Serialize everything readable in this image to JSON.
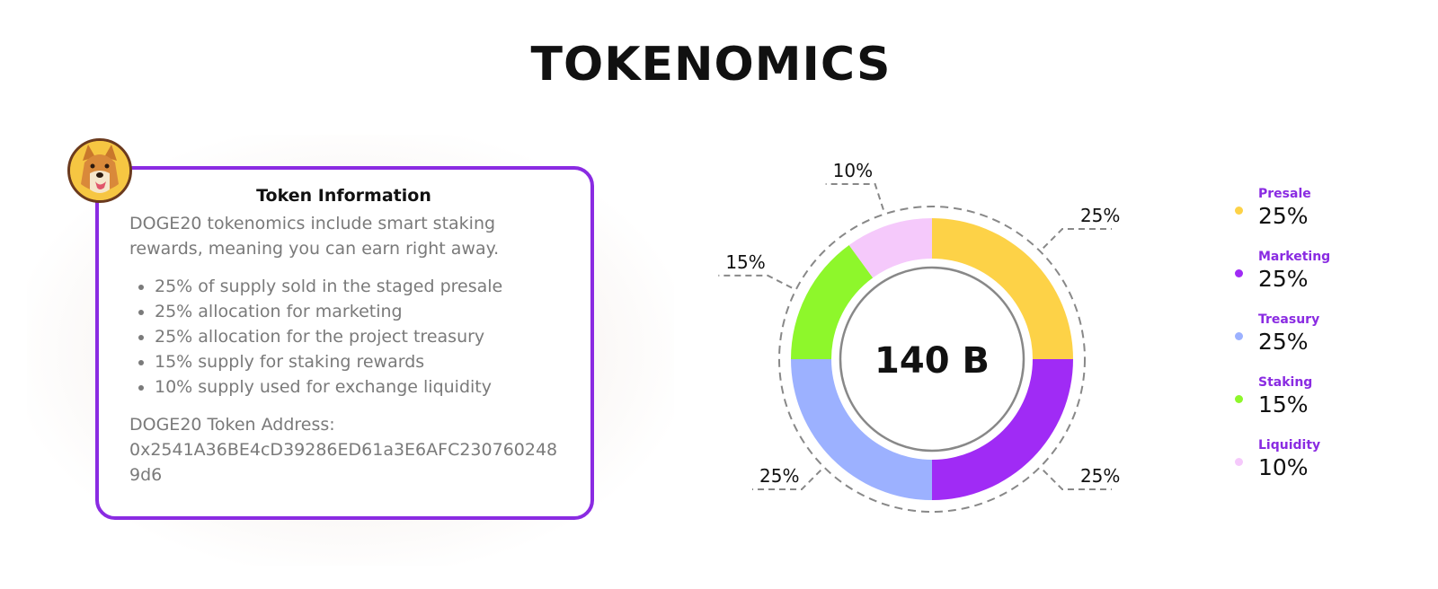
{
  "page": {
    "title": "TOKENOMICS"
  },
  "card": {
    "heading": "Token Information",
    "intro": "DOGE20 tokenomics include smart staking rewards, meaning you can earn right away.",
    "bullets": [
      "25% of supply sold in the staged presale",
      "25% allocation for marketing",
      "25% allocation for the project treasury",
      "15% supply for staking rewards",
      "10% supply used for exchange liquidity"
    ],
    "address_label": "DOGE20 Token Address:",
    "address_value": "0x2541A36BE4cD39286ED61a3E6AFC2307602489d6",
    "avatar_icon": "doge-avatar-icon"
  },
  "colors": {
    "accent": "#8a2be2",
    "presale": "#fdd247",
    "marketing": "#a02bf5",
    "treasury": "#9cb1ff",
    "staking": "#8ef72b",
    "liquidity": "#f5c9fb"
  },
  "chart_data": {
    "type": "pie",
    "center_label": "140 B",
    "slices": [
      {
        "name": "Presale",
        "value": 25,
        "label": "25%",
        "color": "#fdd247"
      },
      {
        "name": "Marketing",
        "value": 25,
        "label": "25%",
        "color": "#a02bf5"
      },
      {
        "name": "Treasury",
        "value": 25,
        "label": "25%",
        "color": "#9cb1ff"
      },
      {
        "name": "Staking",
        "value": 15,
        "label": "15%",
        "color": "#8ef72b"
      },
      {
        "name": "Liquidity",
        "value": 10,
        "label": "10%",
        "color": "#f5c9fb"
      }
    ],
    "legend_placement": "right"
  },
  "legend": [
    {
      "name": "Presale",
      "value": "25%",
      "color": "#fdd247"
    },
    {
      "name": "Marketing",
      "value": "25%",
      "color": "#a02bf5"
    },
    {
      "name": "Treasury",
      "value": "25%",
      "color": "#9cb1ff"
    },
    {
      "name": "Staking",
      "value": "15%",
      "color": "#8ef72b"
    },
    {
      "name": "Liquidity",
      "value": "10%",
      "color": "#f5c9fb"
    }
  ]
}
